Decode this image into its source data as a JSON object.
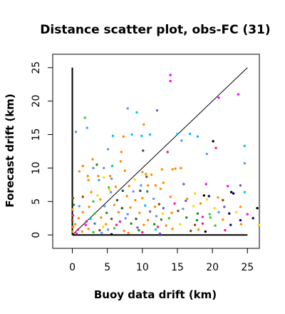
{
  "chart_data": {
    "type": "scatter",
    "title": "Distance scatter plot, obs-FC (31)",
    "xlabel": "Buoy data drift (km)",
    "ylabel": "Forecast drift (km)",
    "xlim": [
      -2.8,
      26.7
    ],
    "ylim": [
      -2.0,
      27.0
    ],
    "xticks": [
      0,
      5,
      10,
      15,
      20,
      25
    ],
    "yticks": [
      0,
      5,
      10,
      15,
      20,
      25
    ],
    "xtick_labels": [
      "0",
      "5",
      "10",
      "15",
      "20",
      "25"
    ],
    "ytick_labels": [
      "0",
      "5",
      "10",
      "15",
      "20",
      "25"
    ],
    "grid": false,
    "legend": "none",
    "reference_lines": [
      {
        "type": "diagonal",
        "x": [
          0,
          25
        ],
        "y": [
          0,
          25
        ],
        "color": "#000000"
      },
      {
        "type": "vertical",
        "x": [
          0,
          0
        ],
        "y": [
          0,
          25
        ],
        "color": "#000000"
      },
      {
        "type": "horizontal",
        "x": [
          0,
          25
        ],
        "y": [
          0,
          0
        ],
        "color": "#000000"
      }
    ],
    "points": [
      {
        "x": 14.0,
        "y": 23.9,
        "color": "#ff00ff"
      },
      {
        "x": 14.0,
        "y": 23.0,
        "color": "#ff00ff"
      },
      {
        "x": 23.7,
        "y": 21.0,
        "color": "#ff00ff"
      },
      {
        "x": 20.9,
        "y": 20.5,
        "color": "#ff00ff"
      },
      {
        "x": 7.9,
        "y": 18.9,
        "color": "#6495ed"
      },
      {
        "x": 9.2,
        "y": 18.3,
        "color": "#00ced1"
      },
      {
        "x": 12.1,
        "y": 18.6,
        "color": "#6a5acd"
      },
      {
        "x": 1.8,
        "y": 17.5,
        "color": "#32cd32"
      },
      {
        "x": 2.1,
        "y": 16.0,
        "color": "#6495ed"
      },
      {
        "x": 0.5,
        "y": 15.4,
        "color": "#6495ed"
      },
      {
        "x": 10.2,
        "y": 16.5,
        "color": "#ff8c00"
      },
      {
        "x": 7.3,
        "y": 14.7,
        "color": "#ff8c00"
      },
      {
        "x": 8.5,
        "y": 15.0,
        "color": "#00bfff"
      },
      {
        "x": 9.9,
        "y": 14.8,
        "color": "#00bfff"
      },
      {
        "x": 11.1,
        "y": 15.0,
        "color": "#00bfff"
      },
      {
        "x": 5.8,
        "y": 14.8,
        "color": "#00bfff"
      },
      {
        "x": 15.0,
        "y": 15.1,
        "color": "#00bfff"
      },
      {
        "x": 16.8,
        "y": 15.1,
        "color": "#00bfff"
      },
      {
        "x": 17.9,
        "y": 14.7,
        "color": "#00bfff"
      },
      {
        "x": 20.1,
        "y": 14.0,
        "color": "#000000"
      },
      {
        "x": 24.6,
        "y": 13.3,
        "color": "#00ced1"
      },
      {
        "x": 15.6,
        "y": 14.1,
        "color": "#6495ed"
      },
      {
        "x": 5.1,
        "y": 12.8,
        "color": "#6495ed"
      },
      {
        "x": 10.1,
        "y": 12.6,
        "color": "#2f4f4f"
      },
      {
        "x": 13.6,
        "y": 12.4,
        "color": "#ff1493"
      },
      {
        "x": 19.2,
        "y": 12.1,
        "color": "#6495ed"
      },
      {
        "x": 20.5,
        "y": 13.0,
        "color": "#ff1493"
      },
      {
        "x": 2.9,
        "y": 11.3,
        "color": "#ff8c00"
      },
      {
        "x": 6.9,
        "y": 11.0,
        "color": "#ff8c00"
      },
      {
        "x": 3.5,
        "y": 10.5,
        "color": "#228b22"
      },
      {
        "x": 1.5,
        "y": 10.3,
        "color": "#ff8c00"
      },
      {
        "x": 3.0,
        "y": 10.0,
        "color": "#6495ed"
      },
      {
        "x": 4.5,
        "y": 10.0,
        "color": "#6495ed"
      },
      {
        "x": 5.7,
        "y": 10.3,
        "color": "#00ced1"
      },
      {
        "x": 24.6,
        "y": 10.7,
        "color": "#6495ed"
      },
      {
        "x": 1.0,
        "y": 9.5,
        "color": "#ff8c00"
      },
      {
        "x": 2.2,
        "y": 8.8,
        "color": "#ff8c00"
      },
      {
        "x": 3.7,
        "y": 8.8,
        "color": "#ff8c00"
      },
      {
        "x": 5.4,
        "y": 8.8,
        "color": "#ff8c00"
      },
      {
        "x": 3.8,
        "y": 8.2,
        "color": "#6495ed"
      },
      {
        "x": 5.6,
        "y": 8.4,
        "color": "#6495ed"
      },
      {
        "x": 7.5,
        "y": 9.6,
        "color": "#ff8c00"
      },
      {
        "x": 10.0,
        "y": 9.4,
        "color": "#ff8c00"
      },
      {
        "x": 10.5,
        "y": 9.1,
        "color": "#ff8c00"
      },
      {
        "x": 10.6,
        "y": 8.7,
        "color": "#8b4513"
      },
      {
        "x": 11.3,
        "y": 9.0,
        "color": "#ff8c00"
      },
      {
        "x": 12.8,
        "y": 9.8,
        "color": "#ff8c00"
      },
      {
        "x": 14.3,
        "y": 9.8,
        "color": "#ff8c00"
      },
      {
        "x": 14.7,
        "y": 9.9,
        "color": "#ff8c00"
      },
      {
        "x": 15.5,
        "y": 10.0,
        "color": "#ff8c00"
      },
      {
        "x": 2.3,
        "y": 8.2,
        "color": "#ff8c00"
      },
      {
        "x": 5.2,
        "y": 7.1,
        "color": "#32cd32"
      },
      {
        "x": 6.2,
        "y": 7.2,
        "color": "#ff8c00"
      },
      {
        "x": 8.1,
        "y": 7.3,
        "color": "#ff8c00"
      },
      {
        "x": 9.8,
        "y": 7.4,
        "color": "#6495ed"
      },
      {
        "x": 10.8,
        "y": 7.4,
        "color": "#ff8c00"
      },
      {
        "x": 11.9,
        "y": 7.4,
        "color": "#ff8c00"
      },
      {
        "x": 13.0,
        "y": 7.8,
        "color": "#ff8c00"
      },
      {
        "x": 15.9,
        "y": 7.6,
        "color": "#6a5acd"
      },
      {
        "x": 19.1,
        "y": 7.6,
        "color": "#ff00ff"
      },
      {
        "x": 22.2,
        "y": 7.3,
        "color": "#ff00ff"
      },
      {
        "x": 24.0,
        "y": 7.4,
        "color": "#6a5acd"
      },
      {
        "x": 2.7,
        "y": 6.4,
        "color": "#ff8c00"
      },
      {
        "x": 5.5,
        "y": 6.4,
        "color": "#6495ed"
      },
      {
        "x": 7.2,
        "y": 6.6,
        "color": "#2f4f4f"
      },
      {
        "x": 8.7,
        "y": 6.5,
        "color": "#6495ed"
      },
      {
        "x": 9.7,
        "y": 6.6,
        "color": "#2f4f4f"
      },
      {
        "x": 10.7,
        "y": 6.5,
        "color": "#228b22"
      },
      {
        "x": 12.6,
        "y": 6.9,
        "color": "#ff8c00"
      },
      {
        "x": 17.5,
        "y": 6.2,
        "color": "#ffd700"
      },
      {
        "x": 22.7,
        "y": 6.4,
        "color": "#000000"
      },
      {
        "x": 23.0,
        "y": 6.2,
        "color": "#00008b"
      },
      {
        "x": 24.6,
        "y": 6.4,
        "color": "#00ced1"
      },
      {
        "x": 3.0,
        "y": 5.0,
        "color": "#32cd32"
      },
      {
        "x": 4.0,
        "y": 5.3,
        "color": "#ff8c00"
      },
      {
        "x": 6.4,
        "y": 5.2,
        "color": "#2f4f4f"
      },
      {
        "x": 9.0,
        "y": 5.2,
        "color": "#ff8c00"
      },
      {
        "x": 10.0,
        "y": 5.5,
        "color": "#ff8c00"
      },
      {
        "x": 11.6,
        "y": 5.4,
        "color": "#6495ed"
      },
      {
        "x": 16.2,
        "y": 5.1,
        "color": "#6a5acd"
      },
      {
        "x": 16.4,
        "y": 5.4,
        "color": "#ff8c00"
      },
      {
        "x": 18.8,
        "y": 5.9,
        "color": "#000000"
      },
      {
        "x": 19.2,
        "y": 5.3,
        "color": "#ffd700"
      },
      {
        "x": 19.5,
        "y": 5.8,
        "color": "#00008b"
      },
      {
        "x": 20.8,
        "y": 5.6,
        "color": "#ff8c00"
      },
      {
        "x": 21.5,
        "y": 5.2,
        "color": "#8b4513"
      },
      {
        "x": 1.0,
        "y": 4.3,
        "color": "#6495ed"
      },
      {
        "x": 2.4,
        "y": 4.2,
        "color": "#ff8c00"
      },
      {
        "x": 4.6,
        "y": 4.3,
        "color": "#6495ed"
      },
      {
        "x": 6.0,
        "y": 4.5,
        "color": "#ff8c00"
      },
      {
        "x": 7.1,
        "y": 4.0,
        "color": "#2f4f4f"
      },
      {
        "x": 8.3,
        "y": 4.1,
        "color": "#ff8c00"
      },
      {
        "x": 10.4,
        "y": 4.4,
        "color": "#00bfff"
      },
      {
        "x": 11.8,
        "y": 4.2,
        "color": "#ff8c00"
      },
      {
        "x": 12.4,
        "y": 4.6,
        "color": "#8b4513"
      },
      {
        "x": 13.0,
        "y": 4.0,
        "color": "#6a5acd"
      },
      {
        "x": 14.6,
        "y": 4.7,
        "color": "#ff1493"
      },
      {
        "x": 17.3,
        "y": 4.3,
        "color": "#ffd700"
      },
      {
        "x": 18.3,
        "y": 4.7,
        "color": "#ff8c00"
      },
      {
        "x": 20.3,
        "y": 4.0,
        "color": "#ffd700"
      },
      {
        "x": 21.7,
        "y": 4.2,
        "color": "#6a5acd"
      },
      {
        "x": 24.0,
        "y": 4.2,
        "color": "#ff8c00"
      },
      {
        "x": 26.4,
        "y": 4.0,
        "color": "#000000"
      },
      {
        "x": 1.5,
        "y": 3.4,
        "color": "#ff8c00"
      },
      {
        "x": 3.2,
        "y": 3.2,
        "color": "#32cd32"
      },
      {
        "x": 4.9,
        "y": 3.3,
        "color": "#228b22"
      },
      {
        "x": 6.6,
        "y": 3.4,
        "color": "#ff8c00"
      },
      {
        "x": 7.9,
        "y": 3.1,
        "color": "#6495ed"
      },
      {
        "x": 9.6,
        "y": 3.3,
        "color": "#ff8c00"
      },
      {
        "x": 11.1,
        "y": 3.5,
        "color": "#6a5acd"
      },
      {
        "x": 12.9,
        "y": 3.2,
        "color": "#ffd700"
      },
      {
        "x": 14.2,
        "y": 3.3,
        "color": "#ff8c00"
      },
      {
        "x": 15.1,
        "y": 3.6,
        "color": "#8b4513"
      },
      {
        "x": 17.9,
        "y": 3.2,
        "color": "#228b22"
      },
      {
        "x": 19.6,
        "y": 3.1,
        "color": "#32cd32"
      },
      {
        "x": 20.9,
        "y": 3.4,
        "color": "#6495ed"
      },
      {
        "x": 22.4,
        "y": 3.2,
        "color": "#00008b"
      },
      {
        "x": 23.4,
        "y": 3.4,
        "color": "#ffd700"
      },
      {
        "x": 25.0,
        "y": 3.1,
        "color": "#ff00ff"
      },
      {
        "x": 0.9,
        "y": 2.5,
        "color": "#ff8c00"
      },
      {
        "x": 2.6,
        "y": 2.4,
        "color": "#00ced1"
      },
      {
        "x": 4.1,
        "y": 2.6,
        "color": "#ff8c00"
      },
      {
        "x": 5.6,
        "y": 2.4,
        "color": "#8b4513"
      },
      {
        "x": 7.6,
        "y": 2.5,
        "color": "#6495ed"
      },
      {
        "x": 9.1,
        "y": 2.4,
        "color": "#2f4f4f"
      },
      {
        "x": 10.8,
        "y": 2.2,
        "color": "#ff8c00"
      },
      {
        "x": 12.7,
        "y": 2.3,
        "color": "#228b22"
      },
      {
        "x": 13.8,
        "y": 2.5,
        "color": "#32cd32"
      },
      {
        "x": 16.3,
        "y": 2.6,
        "color": "#228b22"
      },
      {
        "x": 17.8,
        "y": 2.2,
        "color": "#228b22"
      },
      {
        "x": 19.7,
        "y": 2.6,
        "color": "#32cd32"
      },
      {
        "x": 21.5,
        "y": 2.3,
        "color": "#ff8c00"
      },
      {
        "x": 24.0,
        "y": 2.2,
        "color": "#00008b"
      },
      {
        "x": 25.8,
        "y": 2.5,
        "color": "#00008b"
      },
      {
        "x": 0.4,
        "y": 1.6,
        "color": "#ff8c00"
      },
      {
        "x": 1.9,
        "y": 1.5,
        "color": "#ff00ff"
      },
      {
        "x": 3.2,
        "y": 1.7,
        "color": "#6a5acd"
      },
      {
        "x": 4.8,
        "y": 1.6,
        "color": "#ff8c00"
      },
      {
        "x": 6.3,
        "y": 1.5,
        "color": "#ff1493"
      },
      {
        "x": 8.4,
        "y": 1.7,
        "color": "#228b22"
      },
      {
        "x": 10.2,
        "y": 1.5,
        "color": "#ff8c00"
      },
      {
        "x": 11.7,
        "y": 1.6,
        "color": "#228b22"
      },
      {
        "x": 13.4,
        "y": 1.4,
        "color": "#ff8c00"
      },
      {
        "x": 15.4,
        "y": 1.6,
        "color": "#ffd700"
      },
      {
        "x": 17.5,
        "y": 1.5,
        "color": "#8b4513"
      },
      {
        "x": 18.6,
        "y": 1.7,
        "color": "#ff1493"
      },
      {
        "x": 20.4,
        "y": 1.4,
        "color": "#32cd32"
      },
      {
        "x": 22.6,
        "y": 1.5,
        "color": "#00008b"
      },
      {
        "x": 24.1,
        "y": 1.6,
        "color": "#ff8c00"
      },
      {
        "x": 26.6,
        "y": 1.5,
        "color": "#ffd700"
      },
      {
        "x": 0.8,
        "y": 0.8,
        "color": "#ff1493"
      },
      {
        "x": 2.3,
        "y": 0.9,
        "color": "#ff8c00"
      },
      {
        "x": 3.9,
        "y": 0.7,
        "color": "#8b4513"
      },
      {
        "x": 5.1,
        "y": 0.8,
        "color": "#6495ed"
      },
      {
        "x": 7.4,
        "y": 0.6,
        "color": "#ff8c00"
      },
      {
        "x": 9.5,
        "y": 0.7,
        "color": "#228b22"
      },
      {
        "x": 11.9,
        "y": 0.8,
        "color": "#00ced1"
      },
      {
        "x": 14.3,
        "y": 0.9,
        "color": "#ff8c00"
      },
      {
        "x": 16.9,
        "y": 0.6,
        "color": "#8b4513"
      },
      {
        "x": 18.0,
        "y": 0.8,
        "color": "#ff8c00"
      },
      {
        "x": 19.0,
        "y": 0.5,
        "color": "#000000"
      },
      {
        "x": 21.8,
        "y": 0.7,
        "color": "#ff1493"
      },
      {
        "x": 0.1,
        "y": 5.5,
        "color": "#8b4513"
      },
      {
        "x": 0.2,
        "y": 4.5,
        "color": "#228b22"
      },
      {
        "x": 0.0,
        "y": 3.8,
        "color": "#ff8c00"
      },
      {
        "x": 0.1,
        "y": 2.9,
        "color": "#ff1493"
      },
      {
        "x": 0.0,
        "y": 2.2,
        "color": "#8b4513"
      },
      {
        "x": 0.1,
        "y": 1.2,
        "color": "#ff8c00"
      },
      {
        "x": 0.0,
        "y": 0.5,
        "color": "#ff8c00"
      },
      {
        "x": 0.6,
        "y": 0.2,
        "color": "#ff1493"
      },
      {
        "x": 1.4,
        "y": 0.5,
        "color": "#ff8c00"
      },
      {
        "x": 3.0,
        "y": 0.4,
        "color": "#32cd32"
      },
      {
        "x": 4.2,
        "y": 0.3,
        "color": "#6495ed"
      },
      {
        "x": 5.6,
        "y": 0.1,
        "color": "#000000"
      },
      {
        "x": 8.0,
        "y": 0.3,
        "color": "#ff8c00"
      },
      {
        "x": 10.0,
        "y": 0.4,
        "color": "#ff1493"
      },
      {
        "x": 12.5,
        "y": 0.2,
        "color": "#6a5acd"
      },
      {
        "x": 6.8,
        "y": 2.0,
        "color": "#ff1493"
      },
      {
        "x": 4.4,
        "y": 1.2,
        "color": "#ffd700"
      },
      {
        "x": 9.3,
        "y": 1.1,
        "color": "#6a5acd"
      },
      {
        "x": 12.2,
        "y": 1.2,
        "color": "#ff1493"
      },
      {
        "x": 3.6,
        "y": 5.9,
        "color": "#ffd700"
      },
      {
        "x": 1.5,
        "y": 5.7,
        "color": "#8b4513"
      },
      {
        "x": 7.8,
        "y": 5.8,
        "color": "#ff8c00"
      },
      {
        "x": 8.9,
        "y": 8.3,
        "color": "#ffd700"
      },
      {
        "x": 4.5,
        "y": 8.6,
        "color": "#ffd700"
      },
      {
        "x": 5.3,
        "y": 6.8,
        "color": "#ffd700"
      },
      {
        "x": 7.0,
        "y": 12.4,
        "color": "#ff8c00"
      },
      {
        "x": 14.0,
        "y": 5.7,
        "color": "#ff8c00"
      },
      {
        "x": 15.8,
        "y": 3.9,
        "color": "#6495ed"
      },
      {
        "x": 18.6,
        "y": 2.7,
        "color": "#ff00ff"
      },
      {
        "x": 12.0,
        "y": 2.8,
        "color": "#6495ed"
      },
      {
        "x": 2.0,
        "y": 2.0,
        "color": "#ff1493"
      },
      {
        "x": 6.0,
        "y": 1.0,
        "color": "#32cd32"
      }
    ]
  }
}
